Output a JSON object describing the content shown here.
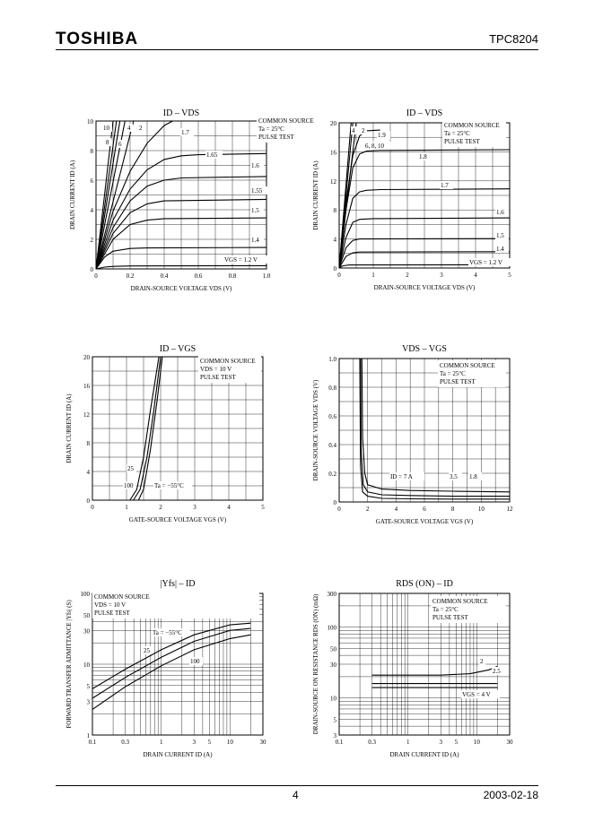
{
  "header": {
    "brand": "TOSHIBA",
    "part_number": "TPC8204"
  },
  "footer": {
    "page": "4",
    "date": "2003-02-18"
  },
  "chart_data": [
    {
      "id": "c1",
      "type": "line",
      "title": "I_D – V_DS",
      "xlabel": "DRAIN-SOURCE VOLTAGE V_DS (V)",
      "ylabel": "DRAIN CURRENT I_D (A)",
      "xlim": [
        0,
        1.0
      ],
      "ylim": [
        0,
        10
      ],
      "grid": true,
      "xticks": [
        "0",
        "0.2",
        "0.4",
        "0.6",
        "0.8",
        "1.0"
      ],
      "yticks": [
        "0",
        "2",
        "4",
        "6",
        "8",
        "10"
      ],
      "legend_lines": [
        "COMMON SOURCE",
        "Ta = 25°C",
        "PULSE TEST"
      ],
      "series": [
        {
          "name": "10",
          "x": [
            0,
            0.1
          ],
          "y": [
            0,
            10
          ]
        },
        {
          "name": "8",
          "x": [
            0,
            0.12
          ],
          "y": [
            0,
            10
          ]
        },
        {
          "name": "6",
          "x": [
            0,
            0.14
          ],
          "y": [
            0,
            10
          ]
        },
        {
          "name": "4",
          "x": [
            0,
            0.17
          ],
          "y": [
            0,
            10
          ]
        },
        {
          "name": "2",
          "x": [
            0,
            0.22
          ],
          "y": [
            0,
            10
          ]
        },
        {
          "name": "1.7",
          "x": [
            0,
            0.1,
            0.2,
            0.3,
            0.4,
            0.45
          ],
          "y": [
            0,
            3.9,
            6.6,
            8.5,
            9.7,
            10
          ]
        },
        {
          "name": "1.65",
          "x": [
            0,
            0.1,
            0.2,
            0.3,
            0.4,
            0.5,
            0.6,
            1.0
          ],
          "y": [
            0,
            3.3,
            5.4,
            6.7,
            7.4,
            7.65,
            7.72,
            7.8
          ]
        },
        {
          "name": "1.6",
          "x": [
            0,
            0.1,
            0.2,
            0.3,
            0.4,
            0.5,
            1.0
          ],
          "y": [
            0,
            2.8,
            4.6,
            5.6,
            6.0,
            6.15,
            6.25
          ]
        },
        {
          "name": "1.55",
          "x": [
            0,
            0.1,
            0.2,
            0.3,
            0.4,
            1.0
          ],
          "y": [
            0,
            2.4,
            3.8,
            4.4,
            4.6,
            4.7
          ]
        },
        {
          "name": "1.5",
          "x": [
            0,
            0.1,
            0.2,
            0.3,
            0.4,
            1.0
          ],
          "y": [
            0,
            2.0,
            3.0,
            3.3,
            3.4,
            3.45
          ]
        },
        {
          "name": "1.4",
          "x": [
            0,
            0.05,
            0.1,
            0.2,
            0.3,
            1.0
          ],
          "y": [
            0,
            0.8,
            1.2,
            1.38,
            1.42,
            1.45
          ]
        },
        {
          "name": "V_GS = 1.2 V",
          "x": [
            0,
            0.05,
            0.1,
            0.2,
            1.0
          ],
          "y": [
            0,
            0.12,
            0.17,
            0.2,
            0.22
          ]
        }
      ],
      "annotations": [
        "10",
        "8",
        "6",
        "4",
        "2",
        "1.7",
        "1.65",
        "1.6",
        "1.55",
        "1.5",
        "1.4",
        "V_GS = 1.2 V"
      ]
    },
    {
      "id": "c2",
      "type": "line",
      "title": "I_D – V_DS",
      "xlabel": "DRAIN-SOURCE VOLTAGE V_DS (V)",
      "ylabel": "DRAIN CURRENT I_D (A)",
      "xlim": [
        0,
        5
      ],
      "ylim": [
        0,
        20
      ],
      "grid": true,
      "xticks": [
        "0",
        "1",
        "2",
        "3",
        "4",
        "5"
      ],
      "yticks": [
        "0",
        "4",
        "8",
        "12",
        "16",
        "20"
      ],
      "legend_lines": [
        "COMMON SOURCE",
        "Ta = 25°C",
        "PULSE TEST"
      ],
      "series": [
        {
          "name": "4",
          "x": [
            0,
            0.4
          ],
          "y": [
            0,
            20
          ]
        },
        {
          "name": "2",
          "x": [
            0,
            0.5
          ],
          "y": [
            0,
            20
          ]
        },
        {
          "name": "1.9",
          "x": [
            0,
            0.2,
            0.4,
            0.6,
            0.8,
            1.2
          ],
          "y": [
            0,
            9,
            15.5,
            18.2,
            18.9,
            19.0
          ]
        },
        {
          "name": "6, 8, 10",
          "x": [
            0,
            0.35
          ],
          "y": [
            0,
            20
          ]
        },
        {
          "name": "1.8",
          "x": [
            0,
            0.2,
            0.4,
            0.6,
            0.8,
            1.2,
            5.0
          ],
          "y": [
            0,
            8,
            13.8,
            15.7,
            16.1,
            16.2,
            16.3
          ]
        },
        {
          "name": "1.7",
          "x": [
            0,
            0.2,
            0.4,
            0.6,
            0.8,
            1.2,
            5.0
          ],
          "y": [
            0,
            6,
            9.6,
            10.5,
            10.7,
            10.8,
            10.9
          ]
        },
        {
          "name": "1.6",
          "x": [
            0,
            0.2,
            0.4,
            0.6,
            1.0,
            5.0
          ],
          "y": [
            0,
            4.2,
            6.3,
            6.7,
            6.8,
            6.9
          ]
        },
        {
          "name": "1.5",
          "x": [
            0,
            0.2,
            0.4,
            0.6,
            5.0
          ],
          "y": [
            0,
            2.8,
            3.8,
            4.0,
            4.05
          ]
        },
        {
          "name": "1.4",
          "x": [
            0,
            0.2,
            0.4,
            0.6,
            5.0
          ],
          "y": [
            0,
            1.6,
            2.1,
            2.2,
            2.25
          ]
        },
        {
          "name": "V_GS = 1.2 V",
          "x": [
            0,
            0.1,
            0.3,
            5.0
          ],
          "y": [
            0,
            0.3,
            0.42,
            0.45
          ]
        }
      ],
      "annotations": [
        "4",
        "2",
        "1.9",
        "6, 8, 10",
        "1.8",
        "1.7",
        "1.6",
        "1.5",
        "1.4",
        "V_GS = 1.2 V"
      ]
    },
    {
      "id": "c3",
      "type": "line",
      "title": "I_D – V_GS",
      "xlabel": "GATE-SOURCE VOLTAGE V_GS (V)",
      "ylabel": "DRAIN CURRENT I_D (A)",
      "xlim": [
        0,
        5
      ],
      "ylim": [
        0,
        20
      ],
      "grid": true,
      "xticks": [
        "0",
        "1",
        "2",
        "3",
        "4",
        "5"
      ],
      "yticks": [
        "0",
        "4",
        "8",
        "12",
        "16",
        "20"
      ],
      "legend_lines": [
        "COMMON SOURCE",
        "V_DS = 10 V",
        "PULSE TEST"
      ],
      "series": [
        {
          "name": "100",
          "x": [
            1.1,
            1.3,
            1.5,
            1.7,
            1.95
          ],
          "y": [
            0,
            1.5,
            6,
            12.5,
            20
          ]
        },
        {
          "name": "25",
          "x": [
            1.2,
            1.4,
            1.6,
            1.8,
            2.0
          ],
          "y": [
            0,
            1.5,
            6,
            12.5,
            20
          ]
        },
        {
          "name": "Ta = −55°C",
          "x": [
            1.35,
            1.5,
            1.7,
            1.9,
            2.05
          ],
          "y": [
            0,
            1.5,
            7,
            14,
            20
          ]
        }
      ],
      "annotations": [
        "25",
        "100",
        "Ta = −55°C"
      ]
    },
    {
      "id": "c4",
      "type": "line",
      "title": "V_DS – V_GS",
      "xlabel": "GATE-SOURCE VOLTAGE V_GS (V)",
      "ylabel": "DRAIN-SOURCE VOLTAGE V_DS (V)",
      "xlim": [
        0,
        12
      ],
      "ylim": [
        0,
        1.0
      ],
      "grid": true,
      "xticks": [
        "0",
        "2",
        "4",
        "6",
        "8",
        "10",
        "12"
      ],
      "yticks": [
        "0",
        "0.2",
        "0.4",
        "0.6",
        "0.8",
        "1.0"
      ],
      "legend_lines": [
        "COMMON SOURCE",
        "Ta = 25°C",
        "PULSE TEST"
      ],
      "series": [
        {
          "name": "I_D = 7 A",
          "x": [
            1.6,
            1.65,
            1.8,
            2.0,
            3.0,
            5.0,
            8.0,
            12.0
          ],
          "y": [
            1.0,
            0.45,
            0.2,
            0.12,
            0.09,
            0.08,
            0.075,
            0.07
          ]
        },
        {
          "name": "3.5",
          "x": [
            1.5,
            1.55,
            1.7,
            2.0,
            3.0,
            5.0,
            8.0,
            12.0
          ],
          "y": [
            1.0,
            0.35,
            0.12,
            0.07,
            0.05,
            0.045,
            0.04,
            0.04
          ]
        },
        {
          "name": "1.8",
          "x": [
            1.45,
            1.5,
            1.65,
            2.0,
            3.0,
            5.0,
            8.0,
            12.0
          ],
          "y": [
            1.0,
            0.25,
            0.07,
            0.04,
            0.025,
            0.022,
            0.02,
            0.02
          ]
        }
      ],
      "annotations": [
        "I_D = 7 A",
        "3.5",
        "1.8"
      ]
    },
    {
      "id": "c5",
      "type": "line",
      "title": "|Y_fs| – I_D",
      "xlabel": "DRAIN CURRENT I_D (A)",
      "ylabel": "FORWARD TRANSFER ADMITTANCE |Y_fs| (S)",
      "xscale": "log",
      "yscale": "log",
      "xlim": [
        0.1,
        30
      ],
      "ylim": [
        1,
        100
      ],
      "grid": true,
      "xticks": [
        "0.1",
        "0.3",
        "1",
        "3",
        "5",
        "10",
        "30"
      ],
      "yticks": [
        "1",
        "3",
        "5",
        "10",
        "30",
        "50",
        "100"
      ],
      "legend_lines": [
        "COMMON SOURCE",
        "V_DS = 10 V",
        "PULSE TEST"
      ],
      "series": [
        {
          "name": "Ta = −55°C",
          "x": [
            0.1,
            0.3,
            1,
            3,
            10,
            20
          ],
          "y": [
            4.5,
            8.5,
            16,
            26,
            36,
            38
          ]
        },
        {
          "name": "25",
          "x": [
            0.1,
            0.3,
            1,
            3,
            10,
            20
          ],
          "y": [
            3.3,
            6.5,
            12.5,
            21,
            30,
            32
          ]
        },
        {
          "name": "100",
          "x": [
            0.1,
            0.3,
            1,
            3,
            10,
            20
          ],
          "y": [
            2.3,
            4.8,
            9.5,
            16,
            23,
            26
          ]
        }
      ],
      "annotations": [
        "Ta = −55°C",
        "25",
        "100"
      ]
    },
    {
      "id": "c6",
      "type": "line",
      "title": "R_DS (ON) – I_D",
      "xlabel": "DRAIN CURRENT I_D (A)",
      "ylabel": "DRAIN-SOURCE ON RESISTANCE R_DS (ON) (mΩ)",
      "xscale": "log",
      "yscale": "log",
      "xlim": [
        0.1,
        30
      ],
      "ylim": [
        3,
        300
      ],
      "grid": true,
      "xticks": [
        "0.1",
        "0.3",
        "1",
        "3",
        "5",
        "10",
        "30"
      ],
      "yticks": [
        "3",
        "5",
        "10",
        "30",
        "50",
        "100",
        "300"
      ],
      "legend_lines": [
        "COMMON SOURCE",
        "Ta = 25°C",
        "PULSE TEST"
      ],
      "series": [
        {
          "name": "2",
          "x": [
            0.3,
            1,
            3,
            8,
            15,
            20
          ],
          "y": [
            21,
            21,
            21,
            22,
            25,
            28
          ]
        },
        {
          "name": "2.5",
          "x": [
            0.3,
            1,
            3,
            10,
            20
          ],
          "y": [
            16,
            16,
            16,
            16,
            16
          ]
        },
        {
          "name": "V_GS = 4 V",
          "x": [
            0.3,
            1,
            3,
            10,
            20
          ],
          "y": [
            14,
            14,
            14,
            14,
            14
          ]
        }
      ],
      "annotations": [
        "2",
        "2.5",
        "V_GS = 4 V"
      ]
    }
  ]
}
